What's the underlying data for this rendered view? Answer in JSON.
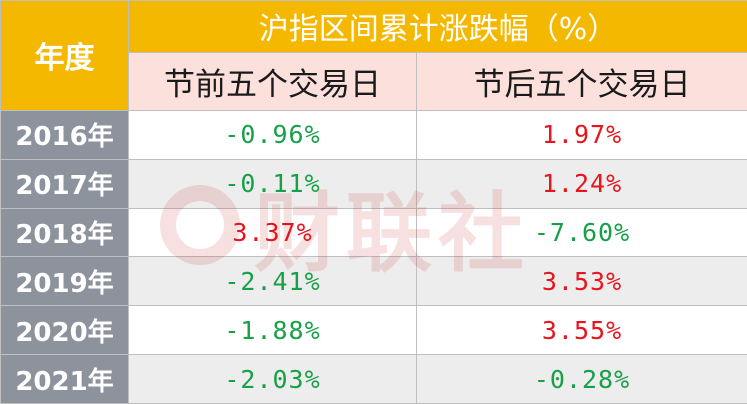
{
  "header": {
    "year_label": "年度",
    "title": "沪指区间累计涨跌幅（%）",
    "col_before": "节前五个交易日",
    "col_after": "节后五个交易日"
  },
  "rows": [
    {
      "year": "2016年",
      "before": "-0.96%",
      "after": "1.97%",
      "before_color": "#18a048",
      "after_color": "#e8141e"
    },
    {
      "year": "2017年",
      "before": "-0.11%",
      "after": "1.24%",
      "before_color": "#18a048",
      "after_color": "#e8141e"
    },
    {
      "year": "2018年",
      "before": "3.37%",
      "after": "-7.60%",
      "before_color": "#e8141e",
      "after_color": "#18a048"
    },
    {
      "year": "2019年",
      "before": "-2.41%",
      "after": "3.53%",
      "before_color": "#18a048",
      "after_color": "#e8141e"
    },
    {
      "year": "2020年",
      "before": "-1.88%",
      "after": "3.55%",
      "before_color": "#18a048",
      "after_color": "#e8141e"
    },
    {
      "year": "2021年",
      "before": "-2.03%",
      "after": "-0.28%",
      "before_color": "#18a048",
      "after_color": "#18a048"
    }
  ],
  "watermark": {
    "text": "财联社",
    "logo": "cls-logo-icon"
  },
  "colors": {
    "header_bg": "#f5b800",
    "subheader_bg": "#fbe0dc",
    "year_col_bg": "#8c939d",
    "positive": "#e8141e",
    "negative": "#18a048"
  }
}
